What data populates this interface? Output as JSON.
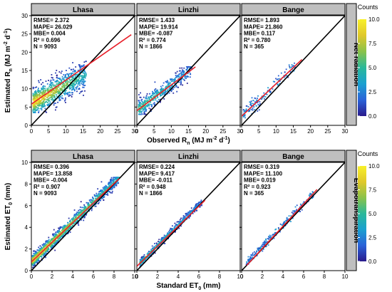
{
  "chart_data": [
    {
      "type": "scatter",
      "row_label": "Net radiation",
      "ylabel_main": "Estimated R",
      "ylabel_sub": "n",
      "ylabel_unit_a": " (MJ m",
      "ylabel_sup_a": "-2",
      "ylabel_unit_b": " d",
      "ylabel_sup_b": "-1",
      "ylabel_close": ")",
      "xlabel_main": "Observed R",
      "xlabel_sub": "n",
      "xlabel_unit_a": " (MJ m",
      "xlabel_sup_a": "-2",
      "xlabel_unit_b": " d",
      "xlabel_sup_b": "-1",
      "xlabel_close": ")",
      "xlim": [
        0,
        30
      ],
      "ylim": [
        0,
        30
      ],
      "x_ticks": [
        "0",
        "5",
        "10",
        "15",
        "20",
        "25",
        "30"
      ],
      "y_ticks": [
        "0",
        "5",
        "10",
        "15",
        "20",
        "25",
        "30"
      ],
      "colorbar": {
        "title": "Counts",
        "ticks": [
          "0.0",
          "2.5",
          "5.0",
          "7.5",
          "10.0"
        ],
        "range": [
          0,
          10
        ]
      },
      "panels": [
        {
          "site": "Lhasa",
          "stats": [
            "RMSE= 2.372",
            "MAPE= 26.029",
            "MBE= 0.004",
            "R² = 0.696",
            "N = 9093"
          ],
          "fit_line": {
            "x0": 0,
            "y0": 5.8,
            "x1": 29,
            "y1": 24.8
          },
          "cloud": {
            "x_min": 0.5,
            "x_max": 16,
            "y_min": 3.5,
            "y_max": 17.5,
            "slope": 0.5,
            "intercept": 6,
            "spread": 3.5,
            "points": 900,
            "density": "high"
          }
        },
        {
          "site": "Linzhi",
          "stats": [
            "RMSE= 1.433",
            "MAPE= 19.914",
            "MBE= -0.087",
            "R² = 0.774",
            "N = 1866"
          ],
          "fit_line": {
            "x0": 0,
            "y0": 4.0,
            "x1": 17,
            "y1": 16.0
          },
          "cloud": {
            "x_min": 0.5,
            "x_max": 16,
            "y_min": 3,
            "y_max": 16,
            "slope": 0.72,
            "intercept": 4,
            "spread": 2.2,
            "points": 450,
            "density": "medium"
          }
        },
        {
          "site": "Bange",
          "stats": [
            "RMSE= 1.893",
            "MAPE= 21.860",
            "MBE= 0.117",
            "R² = 0.780",
            "N = 365"
          ],
          "fit_line": {
            "x0": 0,
            "y0": 2.5,
            "x1": 17.5,
            "y1": 18.0
          },
          "cloud": {
            "x_min": 0.5,
            "x_max": 16,
            "y_min": 1.5,
            "y_max": 17,
            "slope": 0.88,
            "intercept": 2.5,
            "spread": 1.6,
            "points": 150,
            "density": "low"
          }
        }
      ]
    },
    {
      "type": "scatter",
      "row_label": "Evapotranspiration",
      "ylabel_main": "Estimated ET",
      "ylabel_sub": "0",
      "ylabel_unit_a": " (mm)",
      "ylabel_sup_a": "",
      "ylabel_unit_b": "",
      "ylabel_sup_b": "",
      "ylabel_close": "",
      "xlabel_main": "Standard ET",
      "xlabel_sub": "0",
      "xlabel_unit_a": " (mm)",
      "xlabel_sup_a": "",
      "xlabel_unit_b": "",
      "xlabel_sup_b": "",
      "xlabel_close": "",
      "xlim": [
        0,
        10
      ],
      "ylim": [
        0,
        10
      ],
      "x_ticks": [
        "0",
        "2",
        "4",
        "6",
        "8",
        "10"
      ],
      "y_ticks": [
        "0",
        "2",
        "4",
        "6",
        "8",
        "10"
      ],
      "colorbar": {
        "title": "Counts",
        "ticks": [
          "0.0",
          "2.5",
          "5.0",
          "7.5",
          "10.0"
        ],
        "range": [
          0,
          10
        ]
      },
      "panels": [
        {
          "site": "Lhasa",
          "stats": [
            "RMSE= 0.396",
            "MAPE= 13.858",
            "MBE= -0.004",
            "R² = 0.907",
            "N = 9093"
          ],
          "fit_line": {
            "x0": 0,
            "y0": 0.8,
            "x1": 8.5,
            "y1": 8.5
          },
          "cloud": {
            "x_min": 0.1,
            "x_max": 8.5,
            "y_min": 0.3,
            "y_max": 8.6,
            "slope": 0.92,
            "intercept": 0.8,
            "spread": 0.55,
            "points": 1300,
            "density": "high"
          }
        },
        {
          "site": "Linzhi",
          "stats": [
            "RMSE= 0.224",
            "MAPE= 9.417",
            "MBE= -0.011",
            "R² = 0.948",
            "N = 1866"
          ],
          "fit_line": {
            "x0": 0,
            "y0": 0.4,
            "x1": 6.6,
            "y1": 6.5
          },
          "cloud": {
            "x_min": 0.3,
            "x_max": 6.3,
            "y_min": 0.3,
            "y_max": 6.5,
            "slope": 0.95,
            "intercept": 0.4,
            "spread": 0.3,
            "points": 550,
            "density": "medium"
          }
        },
        {
          "site": "Bange",
          "stats": [
            "RMSE= 0.319",
            "MAPE= 11.100",
            "MBE= 0.019",
            "R² = 0.923",
            "N = 365"
          ],
          "fit_line": {
            "x0": 0.5,
            "y0": 0.5,
            "x1": 7.3,
            "y1": 7.5
          },
          "cloud": {
            "x_min": 0.4,
            "x_max": 7.0,
            "y_min": 0.4,
            "y_max": 7.3,
            "slope": 1.0,
            "intercept": 0.2,
            "spread": 0.35,
            "points": 220,
            "density": "low"
          }
        }
      ]
    }
  ],
  "colors": {
    "strip_bg": "#bfbfbf",
    "fit_line": "#e8202a",
    "identity_line": "#000000",
    "colormap": [
      "#2a1a8c",
      "#2a62d8",
      "#1aa0d0",
      "#2ab89a",
      "#8ac24a",
      "#e0c82a",
      "#f8f02a"
    ]
  }
}
